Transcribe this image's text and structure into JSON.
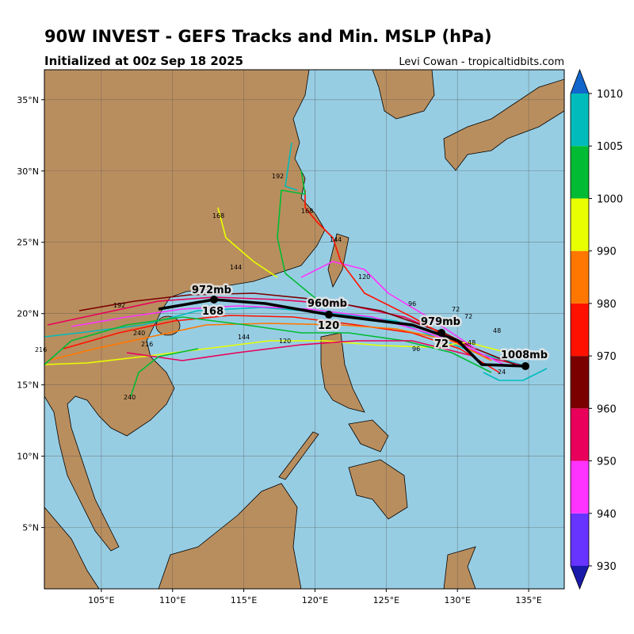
{
  "header": {
    "title": "90W INVEST - GEFS Tracks and Min. MSLP (hPa)",
    "subtitle": "Initialized at 00z Sep 18 2025",
    "credit": "Levi Cowan - tropicaltidbits.com"
  },
  "map": {
    "xlim": [
      101,
      137.5
    ],
    "ylim": [
      0.7,
      37.1
    ],
    "xticks": [
      {
        "value": 105,
        "label": "105°E"
      },
      {
        "value": 110,
        "label": "110°E"
      },
      {
        "value": 115,
        "label": "115°E"
      },
      {
        "value": 120,
        "label": "120°E"
      },
      {
        "value": 125,
        "label": "125°E"
      },
      {
        "value": 130,
        "label": "130°E"
      },
      {
        "value": 135,
        "label": "135°E"
      }
    ],
    "yticks": [
      {
        "value": 5,
        "label": "5°N"
      },
      {
        "value": 10,
        "label": "10°N"
      },
      {
        "value": 15,
        "label": "15°N"
      },
      {
        "value": 20,
        "label": "20°N"
      },
      {
        "value": 25,
        "label": "25°N"
      },
      {
        "value": 30,
        "label": "30°N"
      },
      {
        "value": 35,
        "label": "35°N"
      }
    ],
    "grid": true
  },
  "mean_track_labels": [
    "1008mb",
    "979mb",
    "960mb",
    "972mb",
    "72",
    "120",
    "168"
  ],
  "member_hour_labels": [
    "24",
    "48",
    "48",
    "72",
    "72",
    "96",
    "96",
    "120",
    "120",
    "144",
    "144",
    "144",
    "168",
    "168",
    "192",
    "192",
    "216",
    "216",
    "240",
    "240"
  ],
  "colorbar": {
    "ticks": [
      930,
      940,
      950,
      960,
      970,
      980,
      990,
      1000,
      1005,
      1010
    ],
    "colors": [
      "#6633ff",
      "#ff33ff",
      "#e8005a",
      "#7a0000",
      "#ff1100",
      "#ff7700",
      "#e8ff00",
      "#00bb33",
      "#00bbbb"
    ],
    "under_color": "#1a1aaa",
    "over_color": "#1166cc"
  }
}
